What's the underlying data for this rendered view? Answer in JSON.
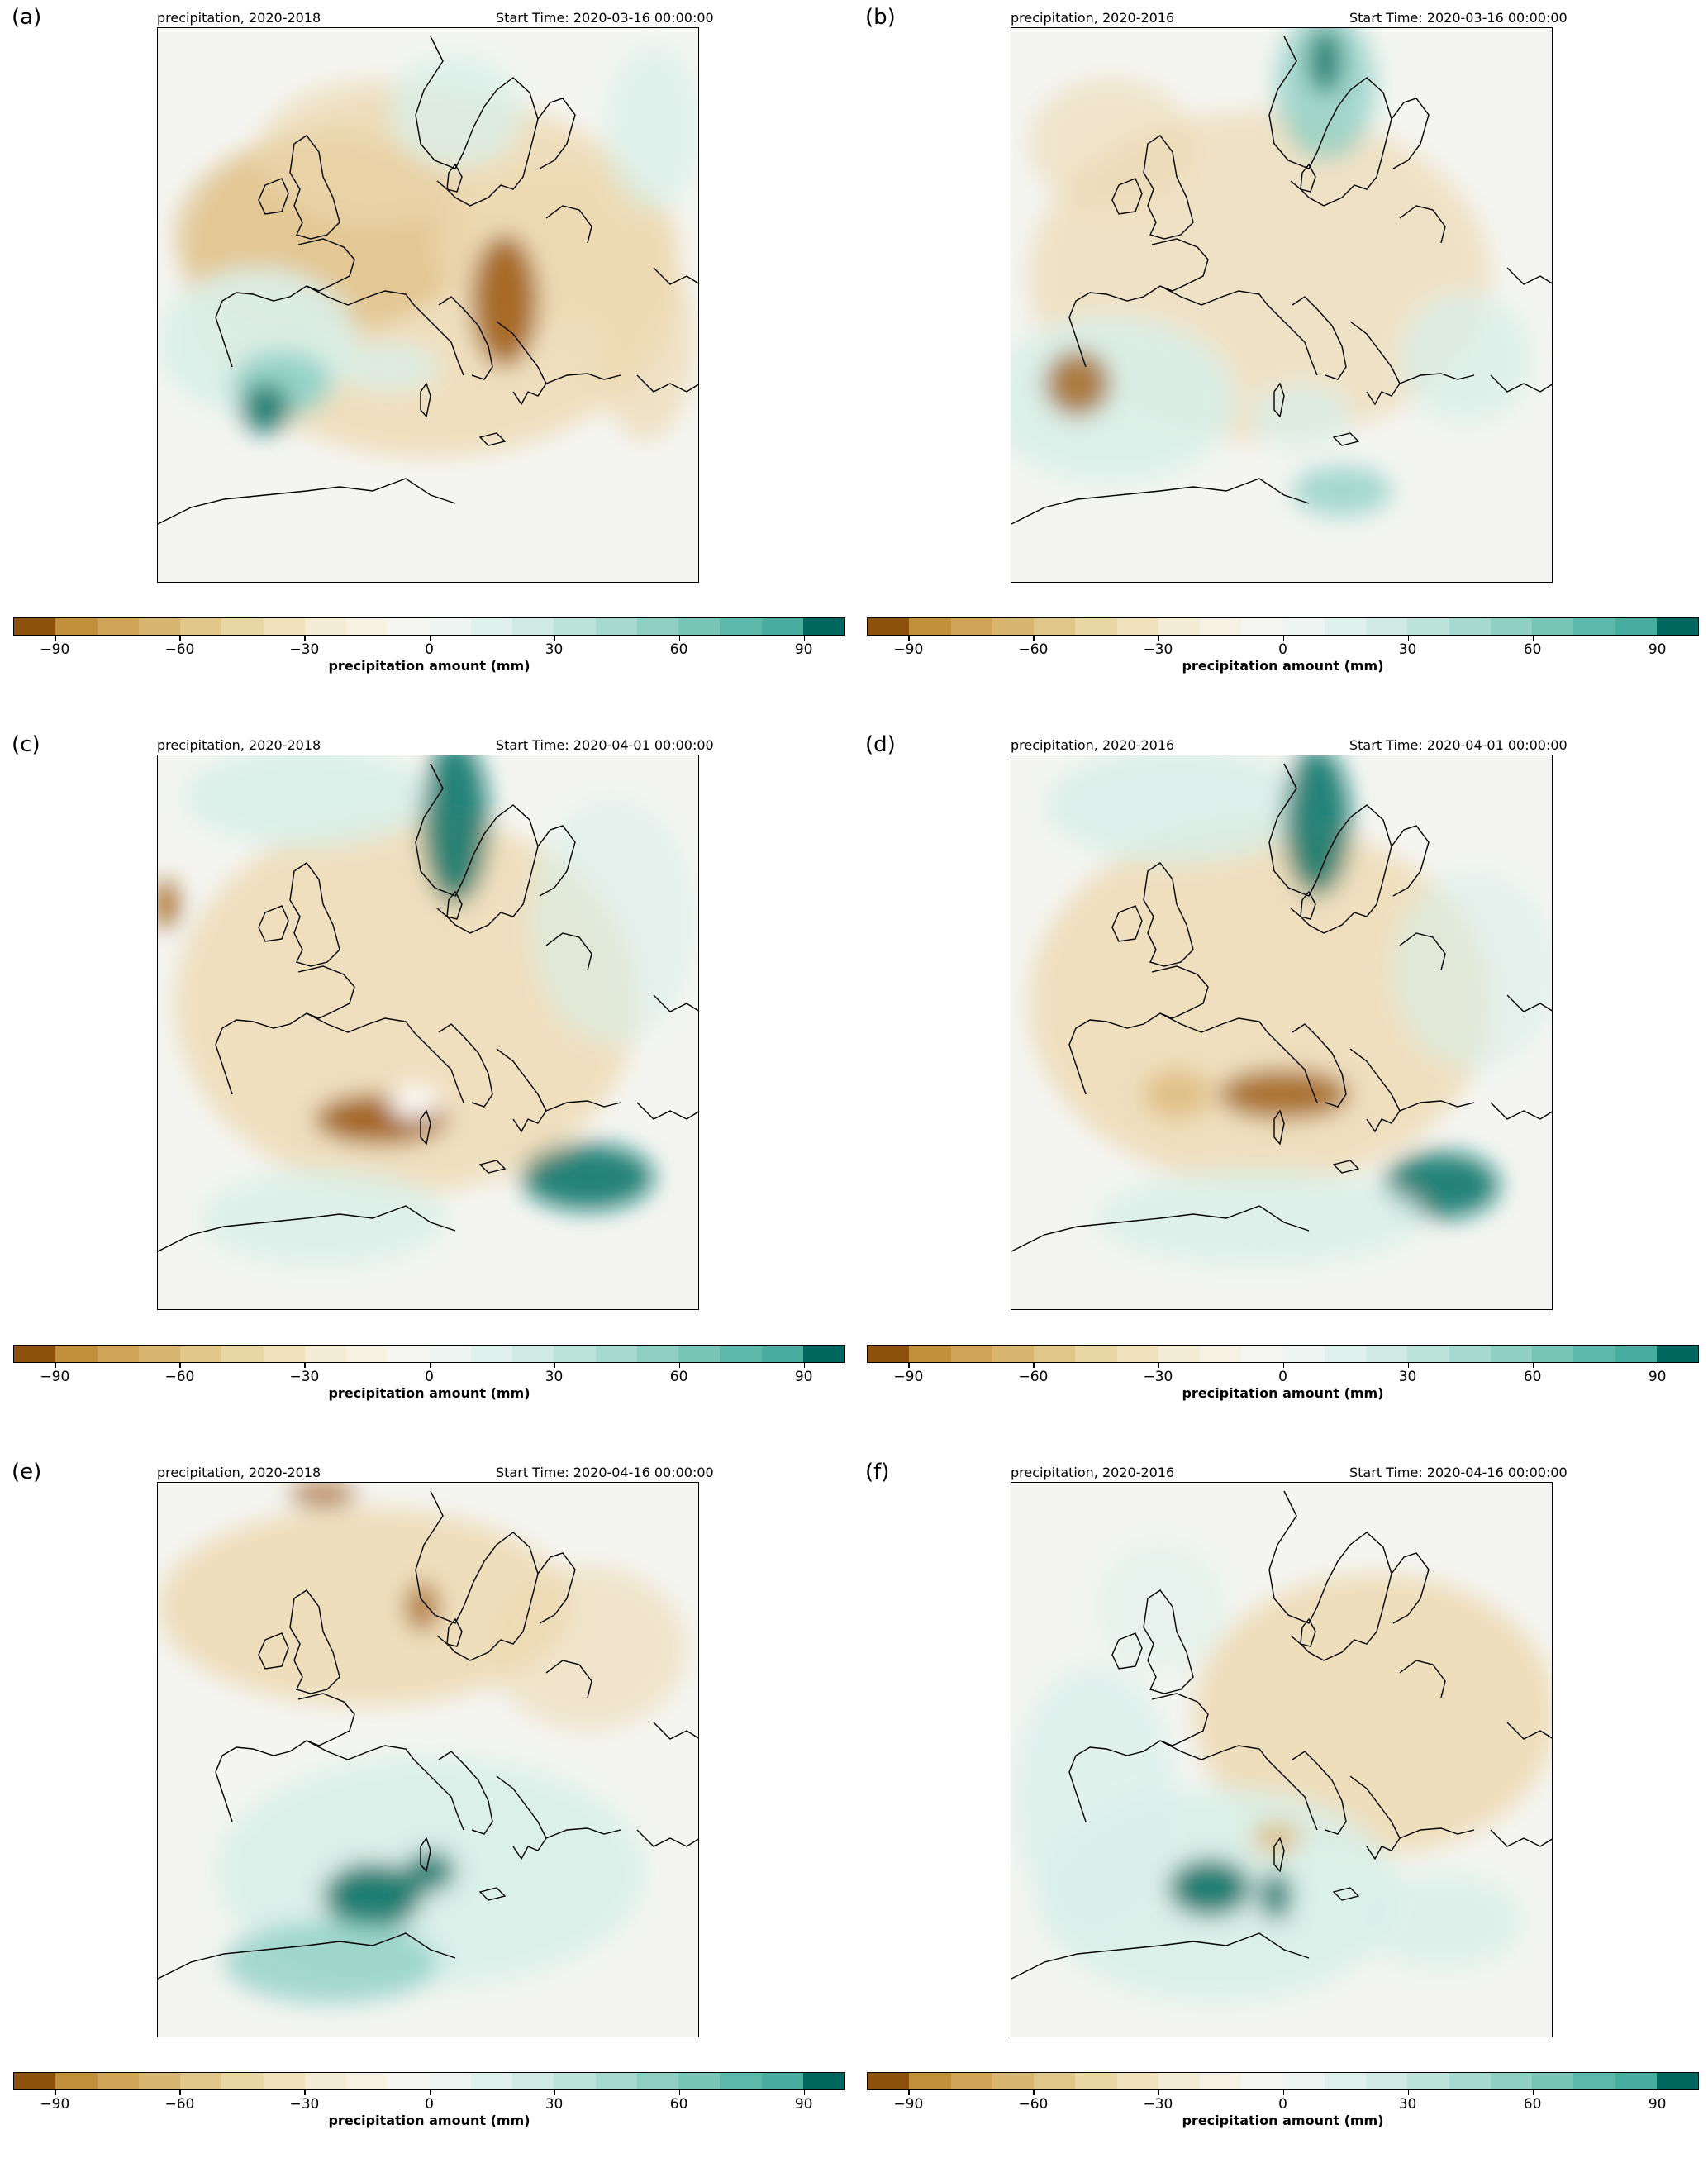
{
  "panels": [
    {
      "letter": "(a)",
      "title_left": "precipitation, 2020-2018",
      "title_right": "Start Time: 2020-03-16 00:00:00",
      "pattern": "deficit_balkans_alps_iberia_wet_spain",
      "colorbar_label": "precipitation amount (mm)"
    },
    {
      "letter": "(b)",
      "title_left": "precipitation, 2020-2016",
      "title_right": "Start Time: 2020-03-16 00:00:00",
      "pattern": "wet_norway_spain_dry_iberia_north",
      "colorbar_label": "precipitation amount (mm)"
    },
    {
      "letter": "(c)",
      "title_left": "precipitation, 2020-2018",
      "title_right": "Start Time: 2020-04-01 00:00:00",
      "pattern": "wet_norway_greece_dry_alps_west",
      "colorbar_label": "precipitation amount (mm)"
    },
    {
      "letter": "(d)",
      "title_left": "precipitation, 2020-2016",
      "title_right": "Start Time: 2020-04-01 00:00:00",
      "pattern": "wet_norway_greece_dry_alps_central",
      "colorbar_label": "precipitation amount (mm)"
    },
    {
      "letter": "(e)",
      "title_left": "precipitation, 2020-2018",
      "title_right": "Start Time: 2020-04-16 00:00:00",
      "pattern": "wet_south_france_dry_north",
      "colorbar_label": "precipitation amount (mm)"
    },
    {
      "letter": "(f)",
      "title_left": "precipitation, 2020-2016",
      "title_right": "Start Time: 2020-04-16 00:00:00",
      "pattern": "wet_south_france_dry_east",
      "colorbar_label": "precipitation amount (mm)"
    }
  ],
  "colorbar": {
    "min": -100,
    "max": 100,
    "ticks": [
      -90,
      -60,
      -30,
      0,
      30,
      60,
      90
    ],
    "tick_labels": [
      "−90",
      "−60",
      "−30",
      "0",
      "30",
      "60",
      "90"
    ],
    "colors": [
      "#8c510a",
      "#c1903c",
      "#cfa358",
      "#d8b56f",
      "#e0c688",
      "#e8d6a4",
      "#efe2bd",
      "#f5ecd6",
      "#f7f1e3",
      "#f5f5f2",
      "#eef4f2",
      "#e0f0ec",
      "#cfeae3",
      "#bce3da",
      "#a6dad0",
      "#8fd0c4",
      "#77c5b7",
      "#5cb9aa",
      "#48ac9e",
      "#01665e"
    ]
  },
  "map_colors": {
    "background": "#f4f5f2",
    "light_brown": "#edd9b2",
    "mid_brown": "#dcb878",
    "dark_brown": "#a05f16",
    "light_teal": "#d9efe9",
    "mid_teal": "#8fd0c4",
    "dark_teal": "#13776b",
    "coast": "#000000"
  }
}
